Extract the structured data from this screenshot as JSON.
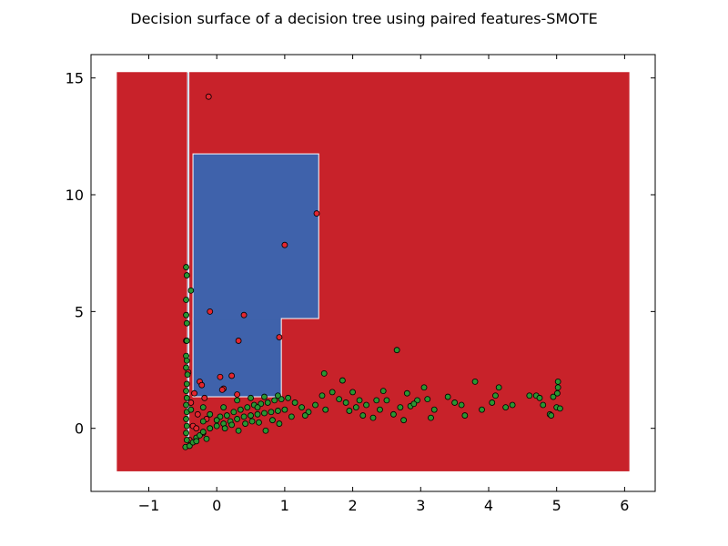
{
  "chart_data": {
    "type": "scatter",
    "title": "Decision surface of a decision tree using paired features-SMOTE",
    "xlabel": "",
    "ylabel": "",
    "xlim": [
      -1.85,
      6.45
    ],
    "ylim": [
      -2.7,
      16.0
    ],
    "x_ticks": [
      -1,
      0,
      1,
      2,
      3,
      4,
      5,
      6
    ],
    "y_ticks": [
      0,
      5,
      10,
      15
    ],
    "x_tick_labels": [
      "−1",
      "0",
      "1",
      "2",
      "3",
      "4",
      "5",
      "6"
    ],
    "y_tick_labels": [
      "0",
      "5",
      "10",
      "15"
    ],
    "grid": false,
    "legend": "none",
    "colors": {
      "class_0_region": "#c8222a",
      "class_1_region": "#3f62ab",
      "class_0_point": "#e3262f",
      "class_1_point": "#2a9632",
      "region_edge": "#ffffff"
    },
    "background_extent": {
      "x": [
        -1.47,
        6.07
      ],
      "y": [
        -1.84,
        15.25
      ]
    },
    "regions": [
      {
        "class": 1,
        "x": [
          -0.35,
          1.5
        ],
        "y": [
          4.7,
          11.75
        ]
      },
      {
        "class": 1,
        "x": [
          -0.35,
          0.95
        ],
        "y": [
          1.35,
          4.7
        ]
      },
      {
        "class": 1,
        "x": [
          -0.43,
          -0.41
        ],
        "y": [
          -0.5,
          15.25
        ]
      }
    ],
    "series": [
      {
        "class": 0,
        "points": [
          [
            -0.12,
            14.2
          ],
          [
            1.47,
            9.2
          ],
          [
            1.0,
            7.85
          ],
          [
            -0.1,
            5.0
          ],
          [
            0.4,
            4.85
          ],
          [
            0.32,
            3.75
          ],
          [
            0.92,
            3.9
          ],
          [
            0.05,
            2.2
          ],
          [
            0.22,
            2.25
          ],
          [
            0.1,
            1.7
          ],
          [
            0.08,
            1.65
          ],
          [
            -0.25,
            2.0
          ],
          [
            -0.22,
            1.85
          ],
          [
            -0.45,
            3.75
          ],
          [
            -0.42,
            2.4
          ],
          [
            -0.33,
            1.5
          ],
          [
            -0.18,
            1.3
          ],
          [
            -0.38,
            1.1
          ],
          [
            -0.28,
            0.6
          ],
          [
            -0.15,
            0.4
          ],
          [
            -0.35,
            0.1
          ],
          [
            -0.2,
            -0.2
          ],
          [
            -0.4,
            -0.5
          ],
          [
            0.3,
            1.45
          ],
          [
            -0.3,
            0.0
          ]
        ]
      },
      {
        "class": 1,
        "points": [
          [
            -0.45,
            6.9
          ],
          [
            -0.44,
            6.55
          ],
          [
            -0.38,
            5.9
          ],
          [
            -0.45,
            5.5
          ],
          [
            -0.45,
            4.85
          ],
          [
            -0.44,
            4.5
          ],
          [
            -0.44,
            3.75
          ],
          [
            -0.45,
            3.1
          ],
          [
            -0.44,
            2.9
          ],
          [
            -0.45,
            2.6
          ],
          [
            -0.43,
            2.3
          ],
          [
            -0.44,
            1.9
          ],
          [
            -0.45,
            1.6
          ],
          [
            -0.44,
            1.3
          ],
          [
            -0.45,
            1.0
          ],
          [
            -0.44,
            0.7
          ],
          [
            -0.45,
            0.4
          ],
          [
            -0.44,
            0.1
          ],
          [
            -0.45,
            -0.2
          ],
          [
            -0.44,
            -0.5
          ],
          [
            -0.46,
            -0.8
          ],
          [
            -0.4,
            -0.75
          ],
          [
            -0.35,
            -0.6
          ],
          [
            -0.3,
            -0.4
          ],
          [
            -0.25,
            -0.3
          ],
          [
            -0.2,
            -0.15
          ],
          [
            -0.1,
            0.0
          ],
          [
            0.0,
            0.1
          ],
          [
            0.1,
            0.2
          ],
          [
            0.2,
            0.3
          ],
          [
            0.3,
            0.4
          ],
          [
            0.4,
            0.5
          ],
          [
            0.5,
            0.55
          ],
          [
            0.6,
            0.6
          ],
          [
            0.7,
            0.65
          ],
          [
            0.8,
            0.7
          ],
          [
            0.9,
            0.75
          ],
          [
            1.0,
            0.8
          ],
          [
            0.05,
            0.5
          ],
          [
            0.15,
            0.55
          ],
          [
            0.25,
            0.7
          ],
          [
            0.35,
            0.8
          ],
          [
            0.45,
            0.9
          ],
          [
            0.55,
            1.0
          ],
          [
            0.65,
            1.05
          ],
          [
            0.75,
            1.1
          ],
          [
            0.85,
            1.2
          ],
          [
            0.95,
            1.25
          ],
          [
            1.05,
            1.3
          ],
          [
            1.15,
            1.1
          ],
          [
            1.25,
            0.9
          ],
          [
            1.35,
            0.7
          ],
          [
            1.45,
            1.0
          ],
          [
            1.55,
            1.4
          ],
          [
            1.58,
            2.35
          ],
          [
            1.7,
            1.55
          ],
          [
            1.8,
            1.25
          ],
          [
            1.85,
            2.05
          ],
          [
            1.9,
            1.1
          ],
          [
            2.0,
            1.55
          ],
          [
            2.05,
            0.9
          ],
          [
            2.1,
            1.2
          ],
          [
            2.2,
            1.0
          ],
          [
            2.3,
            0.45
          ],
          [
            2.35,
            1.2
          ],
          [
            2.45,
            1.6
          ],
          [
            2.5,
            1.2
          ],
          [
            2.6,
            0.6
          ],
          [
            2.65,
            3.35
          ],
          [
            2.75,
            0.35
          ],
          [
            2.8,
            1.5
          ],
          [
            2.85,
            0.95
          ],
          [
            2.95,
            1.2
          ],
          [
            3.05,
            1.75
          ],
          [
            3.1,
            1.25
          ],
          [
            3.15,
            0.45
          ],
          [
            3.2,
            0.8
          ],
          [
            3.4,
            1.35
          ],
          [
            3.5,
            1.1
          ],
          [
            3.6,
            1.0
          ],
          [
            3.65,
            0.55
          ],
          [
            3.8,
            2.0
          ],
          [
            3.9,
            0.8
          ],
          [
            4.05,
            1.1
          ],
          [
            4.1,
            1.4
          ],
          [
            4.15,
            1.75
          ],
          [
            4.25,
            0.9
          ],
          [
            4.35,
            1.0
          ],
          [
            4.6,
            1.4
          ],
          [
            4.7,
            1.4
          ],
          [
            4.75,
            1.3
          ],
          [
            4.8,
            1.0
          ],
          [
            4.9,
            0.6
          ],
          [
            4.95,
            1.35
          ],
          [
            5.0,
            0.9
          ],
          [
            5.02,
            2.0
          ],
          [
            5.05,
            0.85
          ],
          [
            5.02,
            1.75
          ],
          [
            4.92,
            0.55
          ],
          [
            5.01,
            1.5
          ],
          [
            -0.2,
            0.3
          ],
          [
            -0.1,
            0.6
          ],
          [
            0.0,
            0.35
          ],
          [
            0.12,
            0.0
          ],
          [
            0.22,
            0.15
          ],
          [
            0.32,
            -0.1
          ],
          [
            0.42,
            0.2
          ],
          [
            0.52,
            0.3
          ],
          [
            0.62,
            0.25
          ],
          [
            0.72,
            -0.1
          ],
          [
            0.82,
            0.35
          ],
          [
            0.92,
            0.2
          ],
          [
            -0.3,
            -0.55
          ],
          [
            -0.15,
            -0.45
          ],
          [
            0.6,
            0.9
          ],
          [
            -0.38,
            0.8
          ],
          [
            -0.2,
            0.9
          ],
          [
            0.1,
            0.9
          ],
          [
            0.3,
            1.2
          ],
          [
            0.5,
            1.3
          ],
          [
            0.7,
            1.35
          ],
          [
            0.9,
            1.4
          ],
          [
            1.1,
            0.5
          ],
          [
            1.3,
            0.55
          ],
          [
            1.6,
            0.8
          ],
          [
            1.95,
            0.75
          ],
          [
            2.15,
            0.55
          ],
          [
            2.4,
            0.8
          ],
          [
            2.7,
            0.9
          ],
          [
            2.9,
            1.05
          ]
        ]
      }
    ]
  }
}
